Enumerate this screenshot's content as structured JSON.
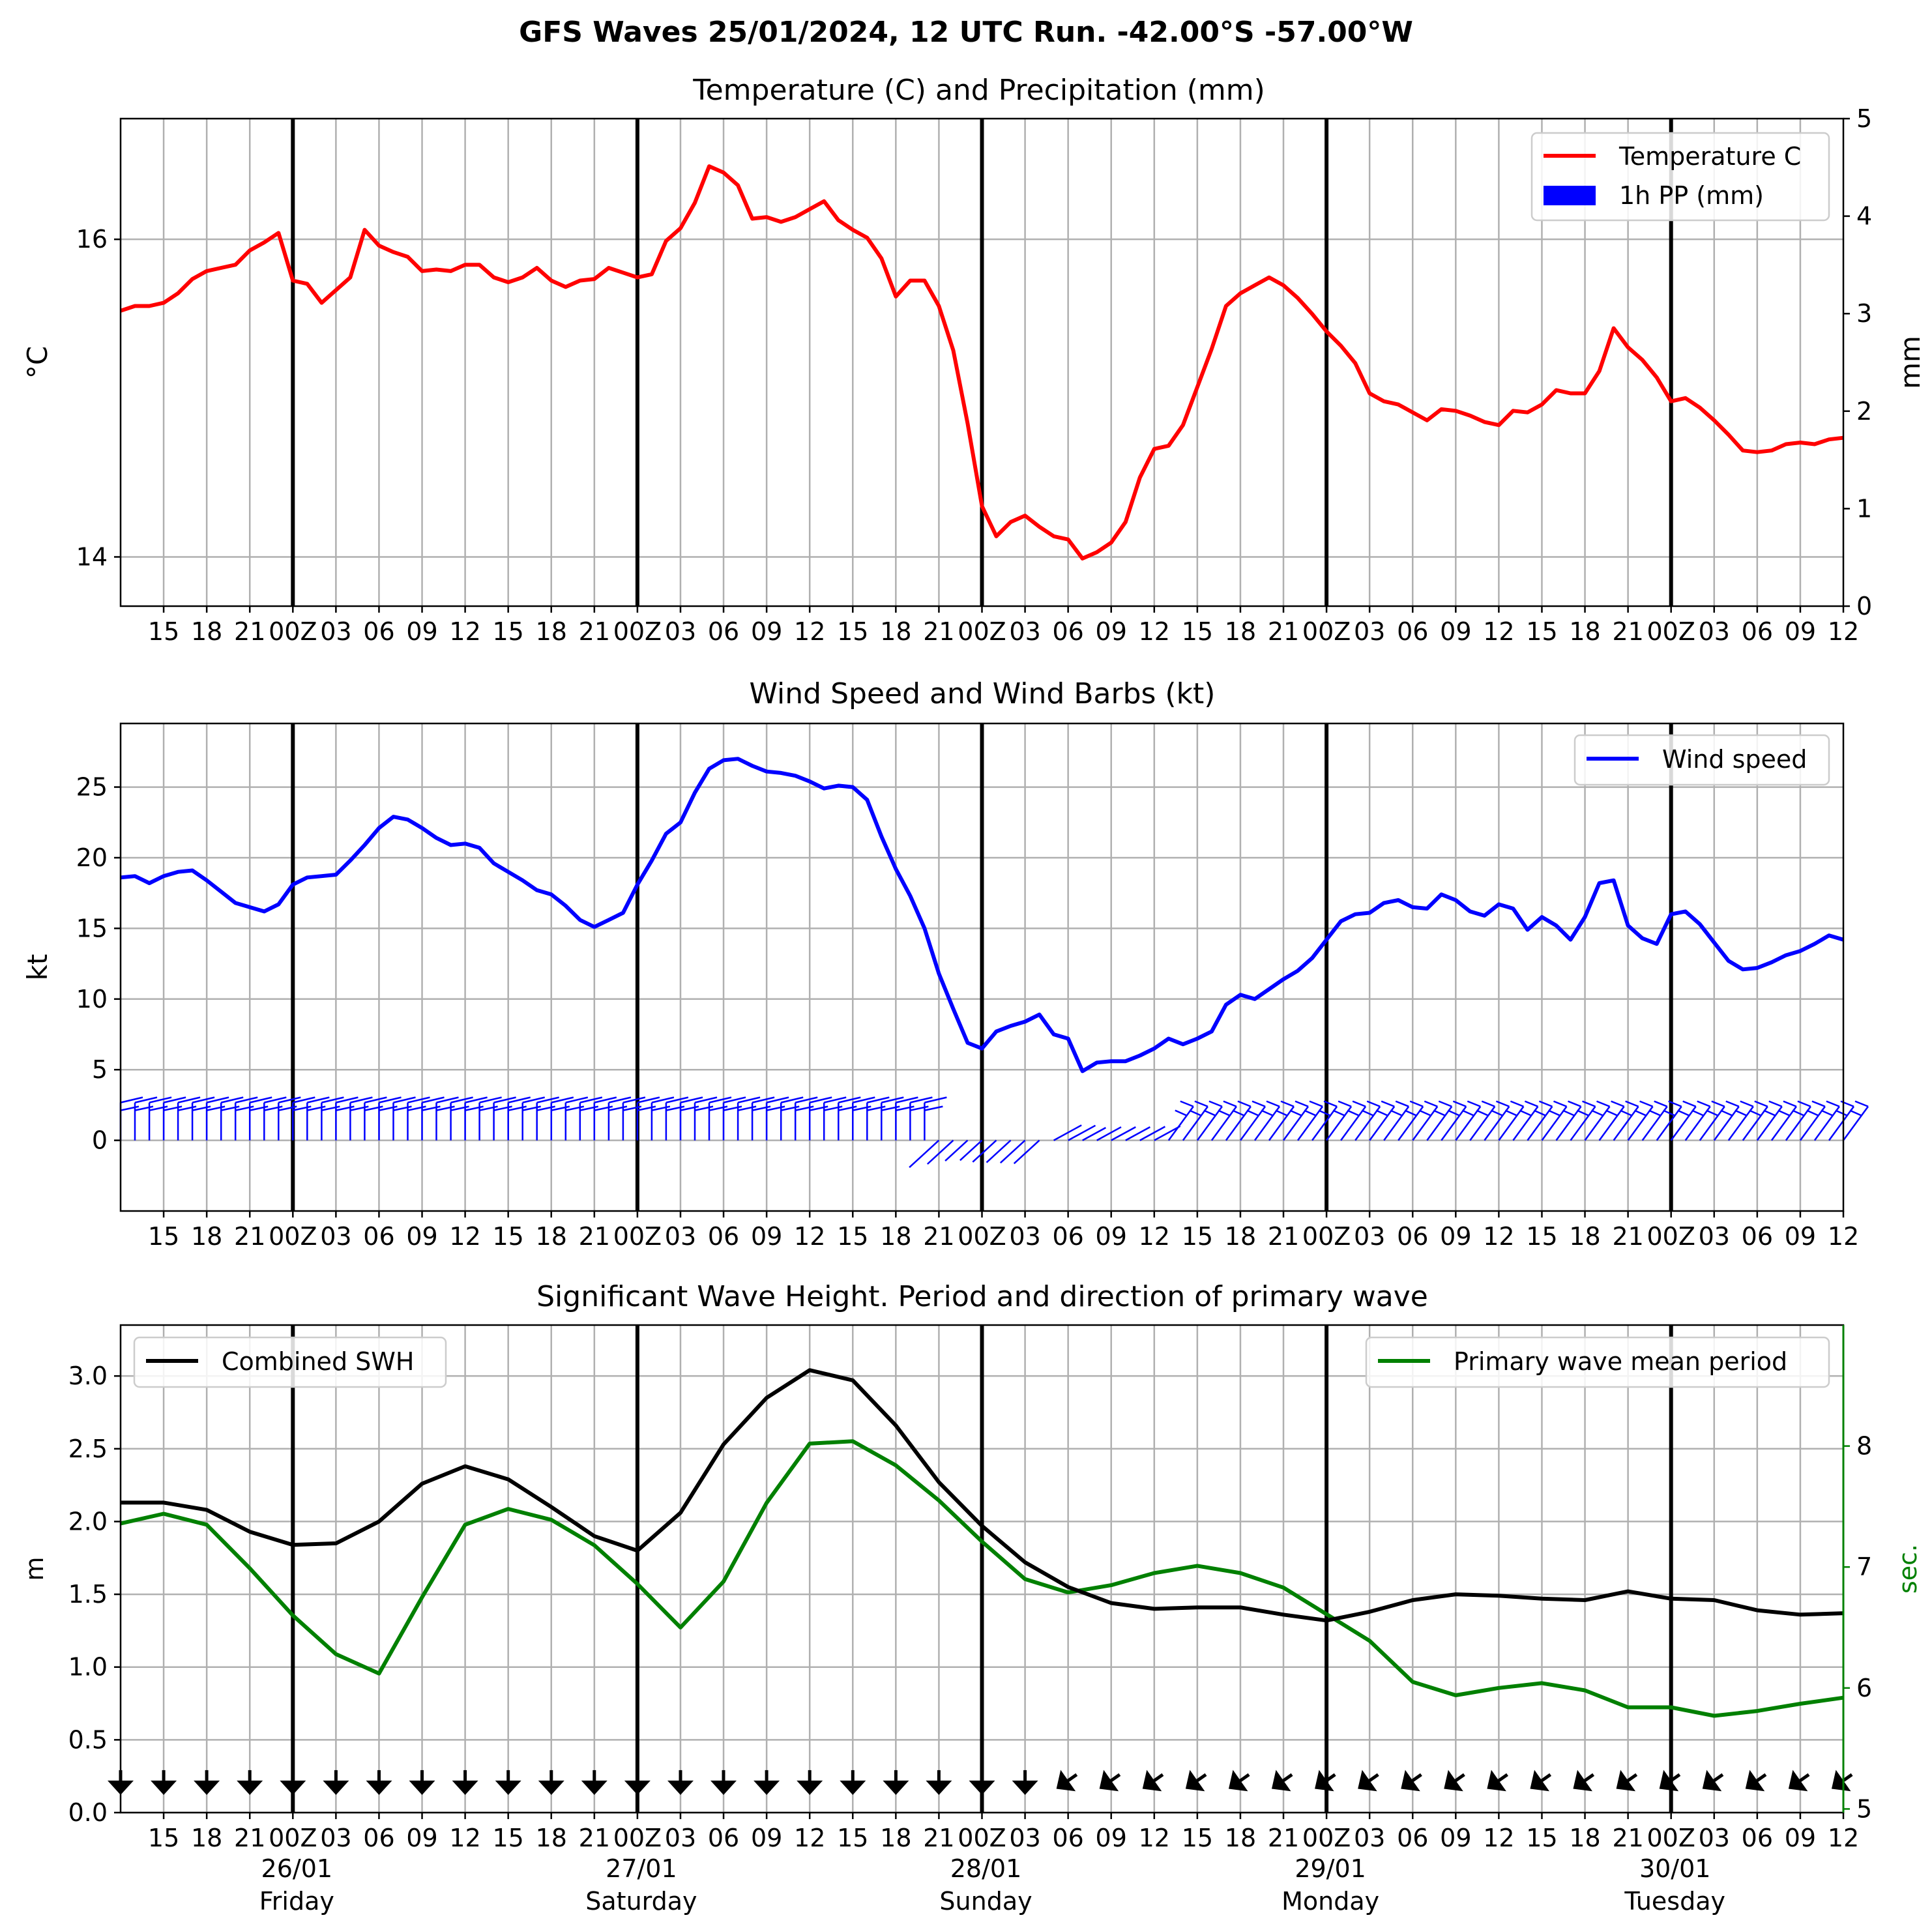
{
  "suptitle": "GFS Waves 25/01/2024, 12 UTC Run. -42.00°S -57.00°W",
  "time_axis": {
    "start_hour_utc": 12,
    "step_hours": 3,
    "end_hours_after_start": 120,
    "tick_labels": [
      "15",
      "18",
      "21",
      "00Z",
      "03",
      "06",
      "09",
      "12",
      "15",
      "18",
      "21",
      "00Z",
      "03",
      "06",
      "09",
      "12",
      "15",
      "18",
      "21",
      "00Z",
      "03",
      "06",
      "09",
      "12",
      "15",
      "18",
      "21",
      "00Z",
      "03",
      "06",
      "09",
      "12",
      "15",
      "18",
      "21",
      "00Z",
      "03",
      "06",
      "09",
      "12"
    ],
    "days": [
      {
        "date": "26/01",
        "weekday": "Friday"
      },
      {
        "date": "27/01",
        "weekday": "Saturday"
      },
      {
        "date": "28/01",
        "weekday": "Sunday"
      },
      {
        "date": "29/01",
        "weekday": "Monday"
      },
      {
        "date": "30/01",
        "weekday": "Tuesday"
      }
    ]
  },
  "chart_data": [
    {
      "type": "line",
      "title": "Temperature (C) and Precipitation (mm)",
      "ylabel": "$^\\circ$C",
      "ylabel_right": "mm",
      "ylim": [
        13.69,
        16.76
      ],
      "ylim_right": [
        0,
        5
      ],
      "yticks": [
        14,
        16
      ],
      "yticks_right": [
        0,
        1,
        2,
        3,
        4,
        5
      ],
      "grid": true,
      "legend": "top-right",
      "series": [
        {
          "name": "Temperature C",
          "color": "#ff0000",
          "x_hours_since_start": [
            0,
            1,
            2,
            3,
            4,
            5,
            6,
            7,
            8,
            9,
            10,
            11,
            12,
            13,
            14,
            15,
            16,
            17,
            18,
            19,
            20,
            21,
            22,
            23,
            24,
            25,
            26,
            27,
            28,
            29,
            30,
            31,
            32,
            33,
            34,
            35,
            36,
            37,
            38,
            39,
            40,
            41,
            42,
            43,
            44,
            45,
            46,
            47,
            48,
            49,
            50,
            51,
            52,
            53,
            54,
            55,
            56,
            57,
            58,
            59,
            60,
            61,
            62,
            63,
            64,
            65,
            66,
            67,
            68,
            69,
            70,
            71,
            72,
            73,
            74,
            75,
            76,
            77,
            78,
            79,
            80,
            81,
            82,
            83,
            84,
            85,
            86,
            87,
            88,
            89,
            90,
            91,
            92,
            93,
            94,
            95,
            96,
            97,
            98,
            99,
            100,
            101,
            102,
            103,
            104,
            105,
            106,
            107,
            108,
            109,
            110,
            111,
            112,
            113,
            114,
            115,
            116,
            117,
            118,
            119,
            120
          ],
          "values": [
            15.55,
            15.58,
            15.58,
            15.6,
            15.66,
            15.75,
            15.8,
            15.82,
            15.84,
            15.93,
            15.98,
            16.04,
            15.74,
            15.72,
            15.6,
            15.68,
            15.76,
            16.06,
            15.96,
            15.92,
            15.89,
            15.8,
            15.81,
            15.8,
            15.84,
            15.84,
            15.76,
            15.73,
            15.76,
            15.82,
            15.74,
            15.7,
            15.74,
            15.75,
            15.82,
            15.79,
            15.76,
            15.78,
            15.99,
            16.07,
            16.23,
            16.46,
            16.42,
            16.34,
            16.13,
            16.14,
            16.11,
            16.14,
            16.19,
            16.24,
            16.12,
            16.06,
            16.01,
            15.88,
            15.64,
            15.74,
            15.74,
            15.58,
            15.3,
            14.84,
            14.32,
            14.13,
            14.22,
            14.26,
            14.19,
            14.13,
            14.11,
            13.99,
            14.03,
            14.09,
            14.22,
            14.5,
            14.68,
            14.7,
            14.83,
            15.07,
            15.31,
            15.58,
            15.66,
            15.71,
            15.76,
            15.71,
            15.63,
            15.53,
            15.42,
            15.33,
            15.22,
            15.03,
            14.98,
            14.96,
            14.91,
            14.86,
            14.93,
            14.92,
            14.89,
            14.85,
            14.83,
            14.92,
            14.91,
            14.96,
            15.05,
            15.03,
            15.03,
            15.17,
            15.44,
            15.32,
            15.24,
            15.13,
            14.98,
            15.0,
            14.94,
            14.86,
            14.77,
            14.67,
            14.66,
            14.67,
            14.71,
            14.72,
            14.71,
            14.74,
            14.75
          ]
        },
        {
          "name": "1h PP (mm)",
          "color": "#0000ff",
          "x_hours_since_start": [],
          "values": []
        }
      ]
    },
    {
      "type": "line",
      "title": "Wind Speed and Wind Barbs (kt)",
      "ylabel": "kt",
      "ylim": [
        -5,
        29.5
      ],
      "yticks": [
        0,
        5,
        10,
        15,
        20,
        25
      ],
      "grid": true,
      "legend": "top-right",
      "series": [
        {
          "name": "Wind speed",
          "color": "#0000ff",
          "x_hours_since_start": [
            0,
            1,
            2,
            3,
            4,
            5,
            6,
            7,
            8,
            9,
            10,
            11,
            12,
            13,
            14,
            15,
            16,
            17,
            18,
            19,
            20,
            21,
            22,
            23,
            24,
            25,
            26,
            27,
            28,
            29,
            30,
            31,
            32,
            33,
            34,
            35,
            36,
            37,
            38,
            39,
            40,
            41,
            42,
            43,
            44,
            45,
            46,
            47,
            48,
            49,
            50,
            51,
            52,
            53,
            54,
            55,
            56,
            57,
            58,
            59,
            60,
            61,
            62,
            63,
            64,
            65,
            66,
            67,
            68,
            69,
            70,
            71,
            72,
            73,
            74,
            75,
            76,
            77,
            78,
            79,
            80,
            81,
            82,
            83,
            84,
            85,
            86,
            87,
            88,
            89,
            90,
            91,
            92,
            93,
            94,
            95,
            96,
            97,
            98,
            99,
            100,
            101,
            102,
            103,
            104,
            105,
            106,
            107,
            108,
            109,
            110,
            111,
            112,
            113,
            114,
            115,
            116,
            117,
            118,
            119,
            120
          ],
          "values": [
            18.6,
            18.7,
            18.2,
            18.7,
            19.0,
            19.1,
            18.4,
            17.6,
            16.8,
            16.5,
            16.2,
            16.7,
            18.1,
            18.6,
            18.7,
            18.8,
            19.8,
            20.9,
            22.1,
            22.9,
            22.7,
            22.1,
            21.4,
            20.9,
            21.0,
            20.7,
            19.6,
            19.0,
            18.4,
            17.7,
            17.4,
            16.6,
            15.6,
            15.1,
            15.6,
            16.1,
            18.1,
            19.8,
            21.7,
            22.5,
            24.6,
            26.3,
            26.9,
            27.0,
            26.5,
            26.1,
            26.0,
            25.8,
            25.4,
            24.9,
            25.1,
            25.0,
            24.1,
            21.5,
            19.2,
            17.3,
            15.0,
            11.8,
            9.3,
            6.9,
            6.5,
            7.7,
            8.1,
            8.4,
            8.9,
            7.5,
            7.2,
            4.9,
            5.5,
            5.6,
            5.6,
            6.0,
            6.5,
            7.2,
            6.8,
            7.2,
            7.7,
            9.6,
            10.3,
            10.0,
            10.7,
            11.4,
            12.0,
            12.9,
            14.2,
            15.5,
            16.0,
            16.1,
            16.8,
            17.0,
            16.5,
            16.4,
            17.4,
            17.0,
            16.2,
            15.9,
            16.7,
            16.4,
            14.9,
            15.8,
            15.2,
            14.2,
            15.8,
            18.2,
            18.4,
            15.2,
            14.3,
            13.9,
            16.0,
            16.2,
            15.3,
            14.0,
            12.7,
            12.1,
            12.2,
            12.6,
            13.1,
            13.4,
            13.9,
            14.5,
            14.2
          ]
        }
      ]
    },
    {
      "type": "line",
      "title": "Significant Wave Height. Period and direction of primary wave",
      "ylabel": "m",
      "ylabel_right": "sec.",
      "ylim": [
        0,
        3.35
      ],
      "ylim_right": [
        4.97,
        9.0
      ],
      "yticks": [
        0.0,
        0.5,
        1.0,
        1.5,
        2.0,
        2.5,
        3.0
      ],
      "yticks_right": [
        5,
        6,
        7,
        8
      ],
      "grid": true,
      "legend": "top-left (Combined SWH), top-right (Primary wave mean period)",
      "series": [
        {
          "name": "Combined SWH",
          "color": "#000000",
          "x_hours_since_start": [
            0,
            3,
            6,
            9,
            12,
            15,
            18,
            21,
            24,
            27,
            30,
            33,
            36,
            39,
            42,
            45,
            48,
            51,
            54,
            57,
            60,
            63,
            66,
            69,
            72,
            75,
            78,
            81,
            84,
            87,
            90,
            93,
            96,
            99,
            102,
            105,
            108,
            111,
            114,
            117,
            120
          ],
          "values": [
            2.13,
            2.13,
            2.08,
            1.93,
            1.84,
            1.85,
            2.0,
            2.26,
            2.38,
            2.29,
            2.1,
            1.9,
            1.8,
            2.06,
            2.53,
            2.85,
            3.04,
            2.97,
            2.66,
            2.27,
            1.97,
            1.72,
            1.55,
            1.44,
            1.4,
            1.41,
            1.41,
            1.36,
            1.32,
            1.38,
            1.46,
            1.5,
            1.49,
            1.47,
            1.46,
            1.52,
            1.47,
            1.46,
            1.39,
            1.36,
            1.37
          ]
        },
        {
          "name": "Primary wave mean period",
          "color": "#008000",
          "axis": "right",
          "x_hours_since_start": [
            0,
            3,
            6,
            9,
            12,
            15,
            18,
            21,
            24,
            27,
            30,
            33,
            36,
            39,
            42,
            45,
            48,
            51,
            54,
            57,
            60,
            63,
            66,
            69,
            72,
            75,
            78,
            81,
            84,
            87,
            90,
            93,
            96,
            99,
            102,
            105,
            108,
            111,
            114,
            117,
            120
          ],
          "values": [
            7.36,
            7.44,
            7.35,
            6.99,
            6.6,
            6.28,
            6.12,
            6.75,
            7.35,
            7.48,
            7.39,
            7.18,
            6.86,
            6.5,
            6.88,
            7.53,
            8.02,
            8.04,
            7.84,
            7.55,
            7.21,
            6.9,
            6.79,
            6.85,
            6.95,
            7.01,
            6.95,
            6.83,
            6.61,
            6.39,
            6.05,
            5.94,
            6.0,
            6.04,
            5.98,
            5.84,
            5.84,
            5.77,
            5.81,
            5.87,
            5.92
          ]
        }
      ]
    }
  ],
  "wind_barbs_note": {
    "rows_marker_count": 121
  }
}
